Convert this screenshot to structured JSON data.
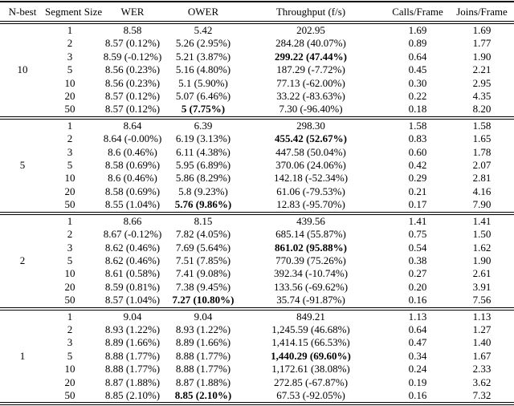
{
  "page": {
    "background_color": "#ffffff",
    "text_color": "#000000"
  },
  "table": {
    "headers": [
      "N-best",
      "Segment Size",
      "WER",
      "OWER",
      "Throughput (f/s)",
      "Calls/Frame",
      "Joins/Frame"
    ],
    "groups": [
      {
        "n_best": "10",
        "rows": [
          {
            "cells": [
              "1",
              "8.58",
              "5.42",
              "202.95",
              "1.69",
              "1.69"
            ],
            "bold_cell": null
          },
          {
            "cells": [
              "2",
              "8.57 (0.12%)",
              "5.26 (2.95%)",
              "284.28 (40.07%)",
              "0.89",
              "1.77"
            ],
            "bold_cell": null
          },
          {
            "cells": [
              "3",
              "8.59 (-0.12%)",
              "5.21 (3.87%)",
              "299.22 (47.44%)",
              "0.64",
              "1.90"
            ],
            "bold_cell": "throughput"
          },
          {
            "cells": [
              "5",
              "8.56 (0.23%)",
              "5.16 (4.80%)",
              "187.29 (-7.72%)",
              "0.45",
              "2.21"
            ],
            "bold_cell": null
          },
          {
            "cells": [
              "10",
              "8.56 (0.23%)",
              "5.1 (5.90%)",
              "77.13 (-62.00%)",
              "0.30",
              "2.95"
            ],
            "bold_cell": null
          },
          {
            "cells": [
              "20",
              "8.57 (0.12%)",
              "5.07 (6.46%)",
              "33.22 (-83.63%)",
              "0.22",
              "4.35"
            ],
            "bold_cell": null
          },
          {
            "cells": [
              "50",
              "8.57 (0.12%)",
              "5 (7.75%)",
              "7.30 (-96.40%)",
              "0.18",
              "8.20"
            ],
            "bold_cell": "ower"
          }
        ]
      },
      {
        "n_best": "5",
        "rows": [
          {
            "cells": [
              "1",
              "8.64",
              "6.39",
              "298.30",
              "1.58",
              "1.58"
            ],
            "bold_cell": null
          },
          {
            "cells": [
              "2",
              "8.64 (-0.00%)",
              "6.19 (3.13%)",
              "455.42 (52.67%)",
              "0.83",
              "1.65"
            ],
            "bold_cell": "throughput"
          },
          {
            "cells": [
              "3",
              "8.6 (0.46%)",
              "6.11 (4.38%)",
              "447.58 (50.04%)",
              "0.60",
              "1.78"
            ],
            "bold_cell": null
          },
          {
            "cells": [
              "5",
              "8.58 (0.69%)",
              "5.95 (6.89%)",
              "370.06 (24.06%)",
              "0.42",
              "2.07"
            ],
            "bold_cell": null
          },
          {
            "cells": [
              "10",
              "8.6 (0.46%)",
              "5.86 (8.29%)",
              "142.18 (-52.34%)",
              "0.29",
              "2.81"
            ],
            "bold_cell": null
          },
          {
            "cells": [
              "20",
              "8.58 (0.69%)",
              "5.8 (9.23%)",
              "61.06 (-79.53%)",
              "0.21",
              "4.16"
            ],
            "bold_cell": null
          },
          {
            "cells": [
              "50",
              "8.55 (1.04%)",
              "5.76 (9.86%)",
              "12.83 (-95.70%)",
              "0.17",
              "7.90"
            ],
            "bold_cell": "ower"
          }
        ]
      },
      {
        "n_best": "2",
        "rows": [
          {
            "cells": [
              "1",
              "8.66",
              "8.15",
              "439.56",
              "1.41",
              "1.41"
            ],
            "bold_cell": null
          },
          {
            "cells": [
              "2",
              "8.67 (-0.12%)",
              "7.82 (4.05%)",
              "685.14 (55.87%)",
              "0.75",
              "1.50"
            ],
            "bold_cell": null
          },
          {
            "cells": [
              "3",
              "8.62 (0.46%)",
              "7.69 (5.64%)",
              "861.02 (95.88%)",
              "0.54",
              "1.62"
            ],
            "bold_cell": "throughput"
          },
          {
            "cells": [
              "5",
              "8.62 (0.46%)",
              "7.51 (7.85%)",
              "770.39 (75.26%)",
              "0.38",
              "1.90"
            ],
            "bold_cell": null
          },
          {
            "cells": [
              "10",
              "8.61 (0.58%)",
              "7.41 (9.08%)",
              "392.34 (-10.74%)",
              "0.27",
              "2.61"
            ],
            "bold_cell": null
          },
          {
            "cells": [
              "20",
              "8.59 (0.81%)",
              "7.38 (9.45%)",
              "133.56 (-69.62%)",
              "0.20",
              "3.91"
            ],
            "bold_cell": null
          },
          {
            "cells": [
              "50",
              "8.57 (1.04%)",
              "7.27 (10.80%)",
              "35.74 (-91.87%)",
              "0.16",
              "7.56"
            ],
            "bold_cell": "ower"
          }
        ]
      },
      {
        "n_best": "1",
        "rows": [
          {
            "cells": [
              "1",
              "9.04",
              "9.04",
              "849.21",
              "1.13",
              "1.13"
            ],
            "bold_cell": null
          },
          {
            "cells": [
              "2",
              "8.93 (1.22%)",
              "8.93 (1.22%)",
              "1,245.59 (46.68%)",
              "0.64",
              "1.27"
            ],
            "bold_cell": null
          },
          {
            "cells": [
              "3",
              "8.89 (1.66%)",
              "8.89 (1.66%)",
              "1,414.15 (66.53%)",
              "0.47",
              "1.40"
            ],
            "bold_cell": null
          },
          {
            "cells": [
              "5",
              "8.88 (1.77%)",
              "8.88 (1.77%)",
              "1,440.29 (69.60%)",
              "0.34",
              "1.67"
            ],
            "bold_cell": "throughput"
          },
          {
            "cells": [
              "10",
              "8.88 (1.77%)",
              "8.88 (1.77%)",
              "1,172.61 (38.08%)",
              "0.24",
              "2.33"
            ],
            "bold_cell": null
          },
          {
            "cells": [
              "20",
              "8.87 (1.88%)",
              "8.87 (1.88%)",
              "272.85 (-67.87%)",
              "0.19",
              "3.62"
            ],
            "bold_cell": null
          },
          {
            "cells": [
              "50",
              "8.85 (2.10%)",
              "8.85 (2.10%)",
              "67.53 (-92.05%)",
              "0.16",
              "7.32"
            ],
            "bold_cell": "ower"
          }
        ]
      }
    ]
  }
}
